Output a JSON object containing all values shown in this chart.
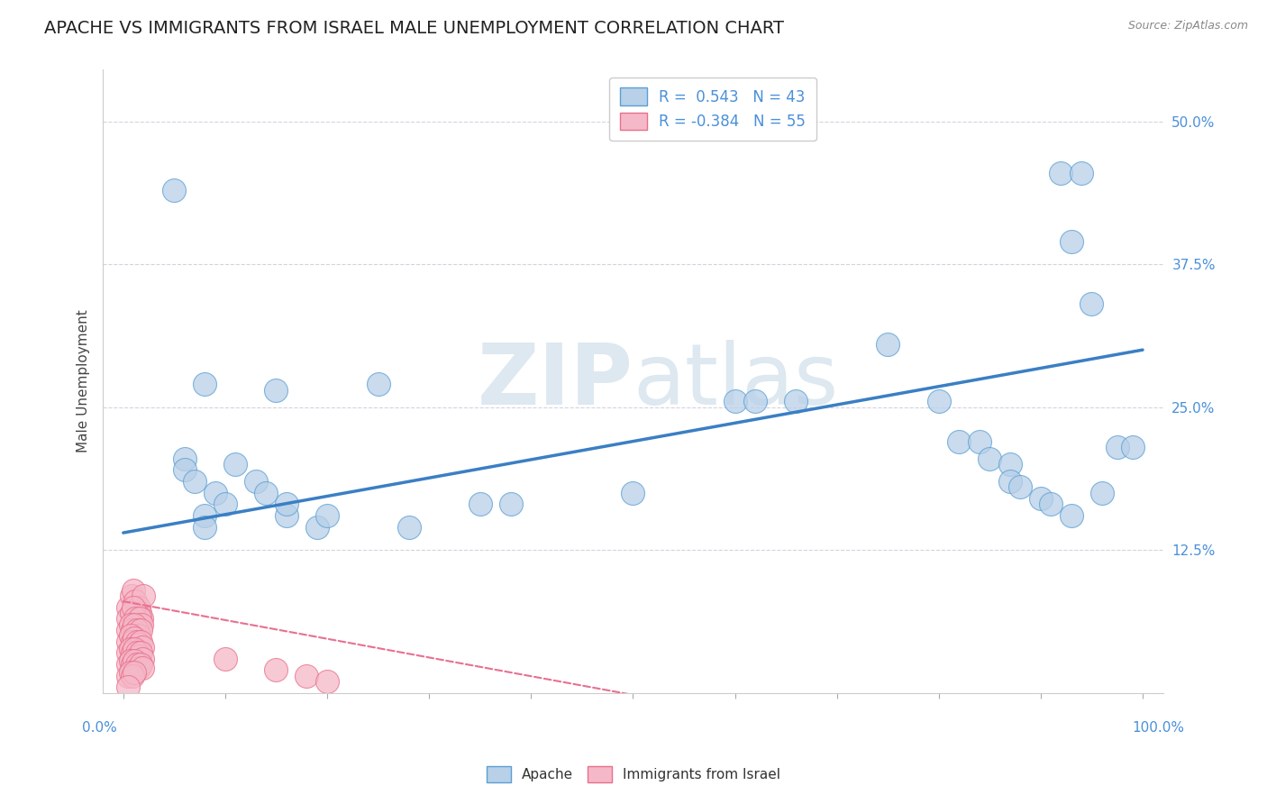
{
  "title": "APACHE VS IMMIGRANTS FROM ISRAEL MALE UNEMPLOYMENT CORRELATION CHART",
  "source": "Source: ZipAtlas.com",
  "ylabel": "Male Unemployment",
  "watermark_zip": "ZIP",
  "watermark_atlas": "atlas",
  "legend_r_apache": "R =  0.543",
  "legend_n_apache": "N = 43",
  "legend_r_israel": "R = -0.384",
  "legend_n_israel": "N = 55",
  "apache_color": "#b8d0e8",
  "israel_color": "#f5b8c8",
  "apache_edge_color": "#5a9fd4",
  "israel_edge_color": "#e8708a",
  "apache_line_color": "#3a7fc4",
  "israel_line_color": "#e87090",
  "tick_color": "#4a90d9",
  "apache_scatter": [
    [
      0.05,
      0.44
    ],
    [
      0.35,
      0.165
    ],
    [
      0.38,
      0.165
    ],
    [
      0.6,
      0.255
    ],
    [
      0.62,
      0.255
    ],
    [
      0.66,
      0.255
    ],
    [
      0.5,
      0.175
    ],
    [
      0.15,
      0.265
    ],
    [
      0.08,
      0.27
    ],
    [
      0.06,
      0.205
    ],
    [
      0.06,
      0.195
    ],
    [
      0.07,
      0.185
    ],
    [
      0.09,
      0.175
    ],
    [
      0.1,
      0.165
    ],
    [
      0.11,
      0.2
    ],
    [
      0.13,
      0.185
    ],
    [
      0.14,
      0.175
    ],
    [
      0.16,
      0.155
    ],
    [
      0.16,
      0.165
    ],
    [
      0.19,
      0.145
    ],
    [
      0.28,
      0.145
    ],
    [
      0.2,
      0.155
    ],
    [
      0.08,
      0.155
    ],
    [
      0.08,
      0.145
    ],
    [
      0.25,
      0.27
    ],
    [
      0.75,
      0.305
    ],
    [
      0.8,
      0.255
    ],
    [
      0.82,
      0.22
    ],
    [
      0.84,
      0.22
    ],
    [
      0.85,
      0.205
    ],
    [
      0.87,
      0.2
    ],
    [
      0.87,
      0.185
    ],
    [
      0.88,
      0.18
    ],
    [
      0.9,
      0.17
    ],
    [
      0.92,
      0.455
    ],
    [
      0.94,
      0.455
    ],
    [
      0.93,
      0.395
    ],
    [
      0.95,
      0.34
    ],
    [
      0.96,
      0.175
    ],
    [
      0.975,
      0.215
    ],
    [
      0.99,
      0.215
    ],
    [
      0.91,
      0.165
    ],
    [
      0.93,
      0.155
    ]
  ],
  "israel_scatter": [
    [
      0.005,
      0.075
    ],
    [
      0.008,
      0.085
    ],
    [
      0.01,
      0.09
    ],
    [
      0.012,
      0.08
    ],
    [
      0.015,
      0.075
    ],
    [
      0.016,
      0.07
    ],
    [
      0.018,
      0.065
    ],
    [
      0.02,
      0.085
    ],
    [
      0.005,
      0.065
    ],
    [
      0.008,
      0.07
    ],
    [
      0.01,
      0.075
    ],
    [
      0.012,
      0.065
    ],
    [
      0.015,
      0.06
    ],
    [
      0.016,
      0.065
    ],
    [
      0.018,
      0.06
    ],
    [
      0.005,
      0.055
    ],
    [
      0.007,
      0.06
    ],
    [
      0.009,
      0.055
    ],
    [
      0.011,
      0.06
    ],
    [
      0.013,
      0.055
    ],
    [
      0.015,
      0.05
    ],
    [
      0.017,
      0.055
    ],
    [
      0.005,
      0.045
    ],
    [
      0.007,
      0.05
    ],
    [
      0.009,
      0.045
    ],
    [
      0.011,
      0.048
    ],
    [
      0.013,
      0.045
    ],
    [
      0.015,
      0.042
    ],
    [
      0.017,
      0.045
    ],
    [
      0.019,
      0.04
    ],
    [
      0.005,
      0.035
    ],
    [
      0.007,
      0.038
    ],
    [
      0.009,
      0.035
    ],
    [
      0.011,
      0.038
    ],
    [
      0.013,
      0.035
    ],
    [
      0.015,
      0.032
    ],
    [
      0.017,
      0.035
    ],
    [
      0.019,
      0.03
    ],
    [
      0.005,
      0.025
    ],
    [
      0.007,
      0.028
    ],
    [
      0.009,
      0.025
    ],
    [
      0.011,
      0.028
    ],
    [
      0.013,
      0.025
    ],
    [
      0.015,
      0.022
    ],
    [
      0.017,
      0.025
    ],
    [
      0.019,
      0.022
    ],
    [
      0.005,
      0.015
    ],
    [
      0.007,
      0.018
    ],
    [
      0.009,
      0.015
    ],
    [
      0.011,
      0.018
    ],
    [
      0.1,
      0.03
    ],
    [
      0.15,
      0.02
    ],
    [
      0.18,
      0.015
    ],
    [
      0.2,
      0.01
    ],
    [
      0.005,
      0.005
    ]
  ],
  "apache_trendline": [
    [
      0.0,
      0.14
    ],
    [
      1.0,
      0.3
    ]
  ],
  "israel_trendline": [
    [
      0.0,
      0.08
    ],
    [
      0.55,
      -0.01
    ]
  ],
  "xlim": [
    -0.02,
    1.02
  ],
  "ylim": [
    0.0,
    0.545
  ],
  "yticks": [
    0.125,
    0.25,
    0.375,
    0.5
  ],
  "ytick_labels": [
    "12.5%",
    "25.0%",
    "37.5%",
    "50.0%"
  ],
  "background_color": "#ffffff",
  "plot_bg_color": "#ffffff",
  "grid_color": "#c8c8d8",
  "title_fontsize": 14,
  "axis_label_fontsize": 11,
  "tick_fontsize": 11
}
